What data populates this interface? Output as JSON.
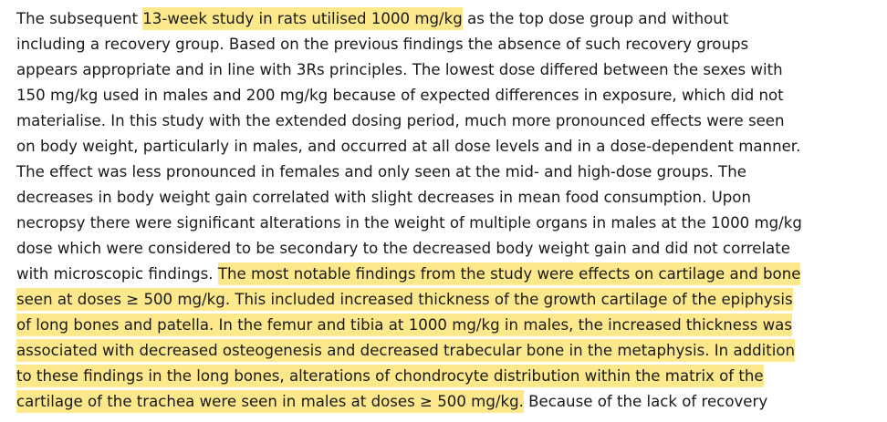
{
  "lines": [
    [
      {
        "text": "The subsequent "
      },
      {
        "text": "13-week study in rats utilised 1000 mg/kg",
        "highlight": true
      },
      {
        "text": " as the top dose group and without"
      }
    ],
    [
      {
        "text": "including a recovery group. Based on the previous findings the absence of such recovery groups"
      }
    ],
    [
      {
        "text": "appears appropriate and in line with 3Rs principles. The lowest dose differed between the sexes with"
      }
    ],
    [
      {
        "text": "150 mg/kg used in males and 200 mg/kg because of expected differences in exposure, which did not"
      }
    ],
    [
      {
        "text": "materialise. In this study with the extended dosing period, much more pronounced effects were seen"
      }
    ],
    [
      {
        "text": "on body weight, particularly in males, and occurred at all dose levels and in a dose-dependent manner."
      }
    ],
    [
      {
        "text": "The effect was less pronounced in females and only seen at the mid- and high-dose groups. The"
      }
    ],
    [
      {
        "text": "decreases in body weight gain correlated with slight decreases in mean food consumption. Upon"
      }
    ],
    [
      {
        "text": "necropsy there were significant alterations in the weight of multiple organs in males at the 1000 mg/kg"
      }
    ],
    [
      {
        "text": "dose which were considered to be secondary to the decreased body weight gain and did not correlate"
      }
    ],
    [
      {
        "text": "with microscopic findings. "
      },
      {
        "text": "The most notable findings from the study were effects on cartilage and bone",
        "highlight": true
      }
    ],
    [
      {
        "text": "seen at doses ≥ 500 mg/kg. This included increased thickness of the growth cartilage of the epiphysis",
        "highlight": true
      }
    ],
    [
      {
        "text": "of long bones and patella. In the femur and tibia at 1000 mg/kg in males, the increased thickness was",
        "highlight": true
      }
    ],
    [
      {
        "text": "associated with decreased osteogenesis and decreased trabecular bone in the metaphysis. In addition",
        "highlight": true
      }
    ],
    [
      {
        "text": "to these findings in the long bones, alterations of chondrocyte distribution within the matrix of the",
        "highlight": true
      }
    ],
    [
      {
        "text": "cartilage of the trachea were seen in males at doses ≥ 500 mg/kg.",
        "highlight": true
      },
      {
        "text": " Because of the lack of recovery"
      }
    ]
  ]
}
